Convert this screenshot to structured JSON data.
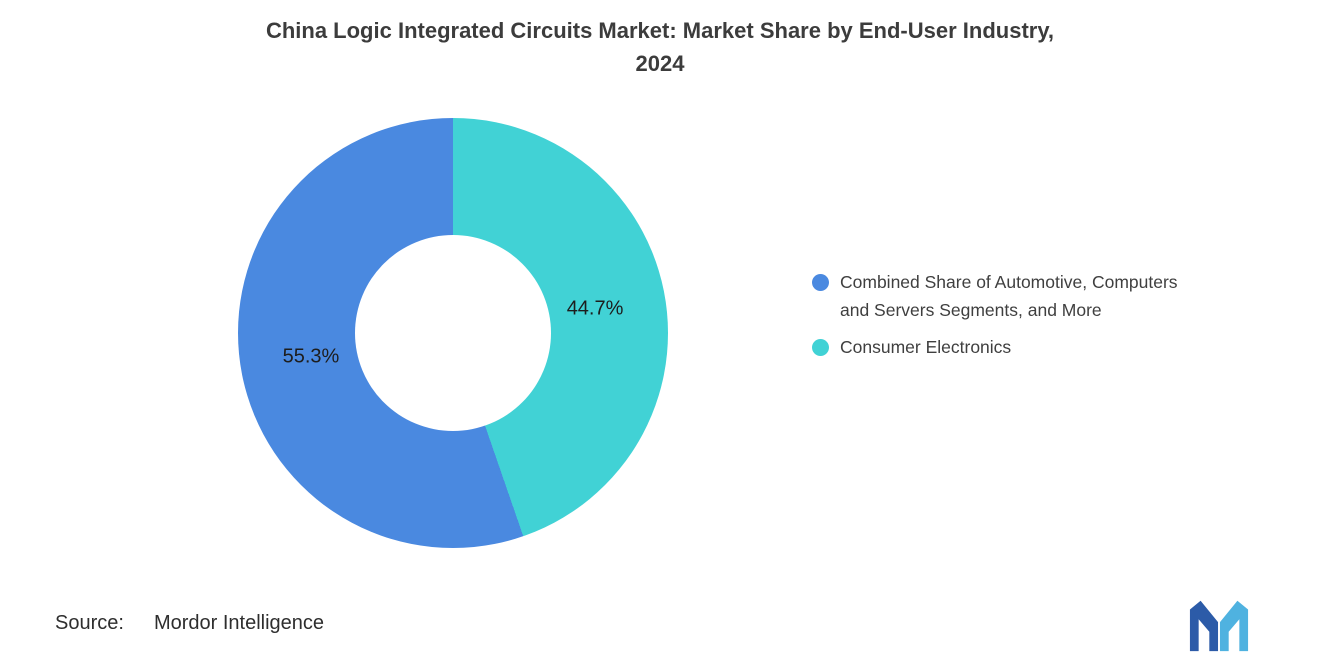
{
  "header": {
    "title_line1": "China Logic Integrated Circuits Market: Market Share by End-User Industry,",
    "title_line2": "2024"
  },
  "legend": [
    {
      "label": "Combined Share of Automotive, Computers and Servers Segments, and More",
      "lines": [
        "Combined Share of Automotive, Computers",
        "and Servers Segments, and More"
      ],
      "color": "#4A89E0"
    },
    {
      "label": "Consumer Electronics",
      "lines": [
        "Consumer Electronics"
      ],
      "color": "#41D2D5"
    }
  ],
  "source": {
    "label": "Source:",
    "value": "Mordor Intelligence"
  },
  "logo": {
    "name": "Mordor Intelligence",
    "color_dark": "#2C5BA8",
    "color_light": "#4FB2E0"
  },
  "chart_data": {
    "type": "pie",
    "subtype": "donut",
    "title": "China Logic Integrated Circuits Market: Market Share by End-User Industry, 2024",
    "categories": [
      "Combined Share of Automotive, Computers and Servers Segments, and More",
      "Consumer Electronics"
    ],
    "values": [
      55.3,
      44.7
    ],
    "unit": "%",
    "slices": [
      {
        "name": "Consumer Electronics",
        "value": 44.7,
        "display_label": "44.7%",
        "color": "#41D2D5"
      },
      {
        "name": "Combined Share of Automotive, Computers and Servers Segments, and More",
        "value": 55.3,
        "display_label": "55.3%",
        "color": "#4A89E0"
      }
    ],
    "start_angle_deg": 0,
    "direction": "clockwise",
    "inner_radius_ratio": 0.455,
    "legend_position": "right"
  }
}
